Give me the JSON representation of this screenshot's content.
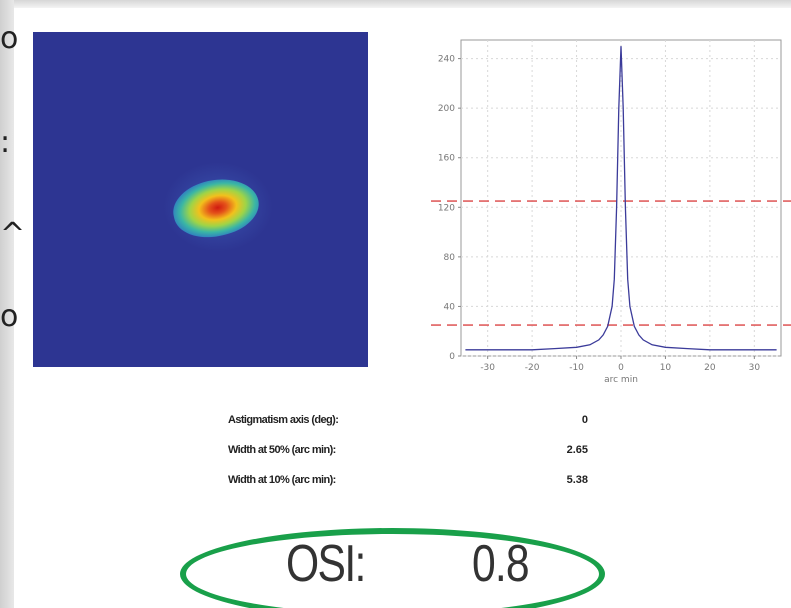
{
  "left_glyphs": [
    "o",
    ":",
    "^",
    "o"
  ],
  "heatmap": {
    "background_color": "#2d3592",
    "peak_color": "#d01a10"
  },
  "chart_data": {
    "type": "line",
    "x": [
      -35,
      -30,
      -25,
      -20,
      -15,
      -10,
      -7,
      -5,
      -4,
      -3,
      -2,
      -1.5,
      -1,
      -0.5,
      0,
      0.5,
      1,
      1.5,
      2,
      3,
      4,
      5,
      7,
      10,
      15,
      20,
      25,
      30,
      35
    ],
    "series": [
      {
        "values": [
          5,
          5,
          5,
          5,
          6,
          7,
          9,
          13,
          17,
          24,
          40,
          62,
          120,
          200,
          250,
          200,
          120,
          62,
          40,
          24,
          17,
          13,
          9,
          7,
          6,
          5,
          5,
          5,
          5
        ],
        "color": "#3b3b9a"
      }
    ],
    "reference_lines": [
      {
        "y": 125,
        "color": "#e06060",
        "style": "dashed"
      },
      {
        "y": 25,
        "color": "#e06060",
        "style": "dashed"
      }
    ],
    "yticks": [
      "0",
      "40",
      "80",
      "120",
      "160",
      "200",
      "240"
    ],
    "xticks": [
      "-30",
      "-20",
      "-10",
      "0",
      "10",
      "20",
      "30"
    ],
    "xlabel": "arc min",
    "ylabel": "",
    "xlim": [
      -36,
      36
    ],
    "ylim": [
      0,
      255
    ],
    "grid": true
  },
  "metrics": [
    {
      "label": "Astigmatism axis (deg):",
      "value": "0"
    },
    {
      "label": "Width at 50% (arc min):",
      "value": "2.65"
    },
    {
      "label": "Width at 10% (arc min):",
      "value": "5.38"
    }
  ],
  "osi": {
    "label": "OSI:",
    "value": "0.8",
    "highlight_color": "#19a04a"
  }
}
